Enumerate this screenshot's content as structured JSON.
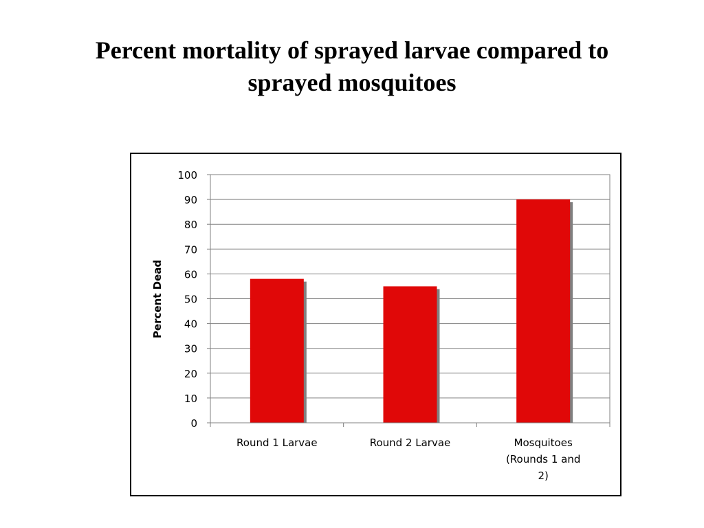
{
  "slide": {
    "title_line1": "Percent mortality of sprayed larvae compared to",
    "title_line2": "sprayed mosquitoes"
  },
  "chart_data": {
    "type": "bar",
    "title": "Percent mortality of sprayed larvae compared to sprayed mosquitoes",
    "ylabel": "Percent Dead",
    "xlabel": "",
    "categories": [
      [
        "Round 1 Larvae"
      ],
      [
        "Round 2 Larvae"
      ],
      [
        "Mosquitoes",
        "(Rounds 1 and",
        "2)"
      ]
    ],
    "values": [
      58,
      55,
      90
    ],
    "ylim": [
      0,
      100
    ],
    "yticks": [
      0,
      10,
      20,
      30,
      40,
      50,
      60,
      70,
      80,
      90,
      100
    ],
    "grid": true,
    "legend": "none",
    "colors": {
      "bar": "#e00808",
      "shadow": "#808080",
      "grid": "#808080",
      "axis": "#808080"
    }
  }
}
